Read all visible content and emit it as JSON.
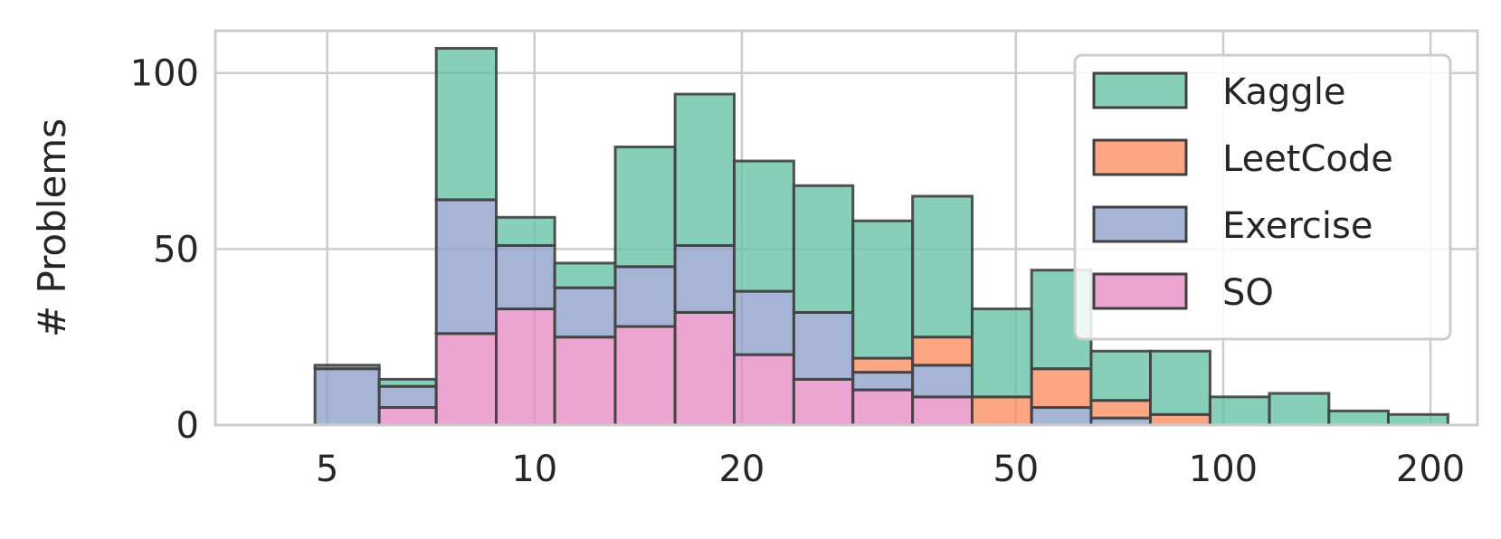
{
  "chart_data": {
    "type": "bar",
    "stacked": true,
    "histogram": true,
    "xscale": "log",
    "xlabel": "",
    "ylabel": "# Problems",
    "xticks": [
      5,
      10,
      20,
      50,
      100,
      200
    ],
    "xtick_labels": [
      "5",
      "10",
      "20",
      "50",
      "100",
      "200"
    ],
    "yticks": [
      0,
      50,
      100
    ],
    "ytick_labels": [
      "0",
      "50",
      "100"
    ],
    "xlim": [
      3.44,
      234
    ],
    "ylim": [
      0,
      112
    ],
    "grid": true,
    "legend_position": "top-right",
    "bin_edges": [
      3.45,
      4.8,
      5.95,
      7.2,
      8.8,
      10.7,
      13.1,
      16.0,
      19.5,
      23.8,
      29.0,
      35.4,
      43.2,
      52.7,
      64.3,
      78.4,
      95.7,
      116.7,
      142.4,
      173.7,
      212
    ],
    "series": [
      {
        "name": "SO",
        "color": "#e78ac3",
        "values": [
          0,
          0,
          5,
          26,
          33,
          25,
          28,
          32,
          20,
          13,
          10,
          8,
          0,
          0,
          0,
          0,
          0,
          0,
          0,
          0
        ]
      },
      {
        "name": "Exercise",
        "color": "#8da0cb",
        "values": [
          0,
          16,
          6,
          38,
          18,
          14,
          17,
          19,
          18,
          19,
          5,
          9,
          0,
          5,
          2,
          0,
          0,
          0,
          0,
          0
        ]
      },
      {
        "name": "LeetCode",
        "color": "#fc8d62",
        "values": [
          0,
          0,
          0,
          0,
          0,
          0,
          0,
          0,
          0,
          0,
          4,
          8,
          8,
          11,
          5,
          3,
          0,
          0,
          0,
          0
        ]
      },
      {
        "name": "Kaggle",
        "color": "#66c2a5",
        "values": [
          0,
          1,
          2,
          43,
          8,
          7,
          34,
          43,
          37,
          36,
          39,
          40,
          25,
          28,
          14,
          18,
          8,
          9,
          4,
          3
        ]
      }
    ],
    "legend_order": [
      "Kaggle",
      "LeetCode",
      "Exercise",
      "SO"
    ]
  }
}
